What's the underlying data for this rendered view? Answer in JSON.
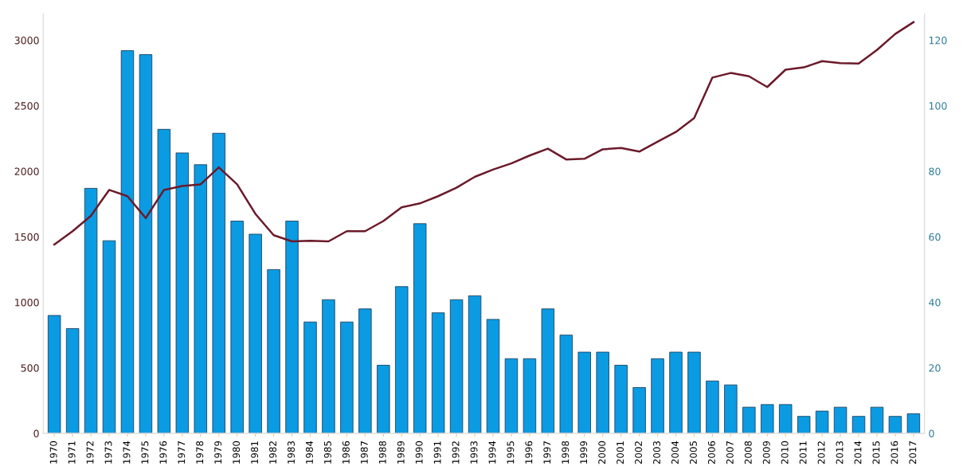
{
  "chart_data": {
    "type": "bar",
    "categories": [
      "1970",
      "1971",
      "1972",
      "1973",
      "1974",
      "1975",
      "1976",
      "1977",
      "1978",
      "1979",
      "1980",
      "1981",
      "1982",
      "1983",
      "1984",
      "1985",
      "1986",
      "1987",
      "1988",
      "1989",
      "1990",
      "1991",
      "1992",
      "1993",
      "1994",
      "1995",
      "1996",
      "1997",
      "1998",
      "1999",
      "2000",
      "2001",
      "2002",
      "2003",
      "2004",
      "2005",
      "2006",
      "2007",
      "2008",
      "2009",
      "2010",
      "2011",
      "2012",
      "2013",
      "2014",
      "2015",
      "2016",
      "2017"
    ],
    "series": [
      {
        "color": "#0a9be3",
        "values": [
          900,
          800,
          1870,
          1470,
          2920,
          2890,
          2320,
          2140,
          2050,
          2290,
          1620,
          1520,
          1250,
          1620,
          850,
          1020,
          850,
          950,
          520,
          1120,
          1600,
          920,
          1020,
          1050,
          870,
          570,
          570,
          950,
          750,
          620,
          620,
          520,
          350,
          570,
          620,
          620,
          400,
          370,
          200,
          220,
          220,
          130,
          170,
          200,
          130,
          200,
          130,
          150
        ]
      },
      {
        "type": "line",
        "axis": "y2",
        "color": "#6b1a2a",
        "values": [
          57.6,
          61.7,
          66.4,
          74.3,
          72.4,
          65.7,
          74.3,
          75.5,
          76,
          81.2,
          76,
          67,
          60.5,
          58.6,
          58.8,
          58.6,
          61.7,
          61.7,
          64.8,
          69,
          70.2,
          72.4,
          75,
          78.3,
          80.5,
          82.4,
          84.8,
          86.9,
          83.6,
          83.8,
          86.7,
          87.1,
          86,
          89,
          92,
          96.2,
          108.6,
          110,
          109,
          105.7,
          111,
          111.7,
          113.6,
          113,
          112.9,
          117,
          121.9,
          125.5
        ]
      }
    ],
    "ylim": [
      0,
      3200
    ],
    "yticks": [
      0,
      500,
      1000,
      1500,
      2000,
      2500,
      3000
    ],
    "y2lim": [
      0,
      128
    ],
    "y2ticks": [
      0,
      20,
      40,
      60,
      80,
      100,
      120
    ],
    "grid": false,
    "legend": false,
    "marker": "none",
    "line_style": "solid"
  }
}
